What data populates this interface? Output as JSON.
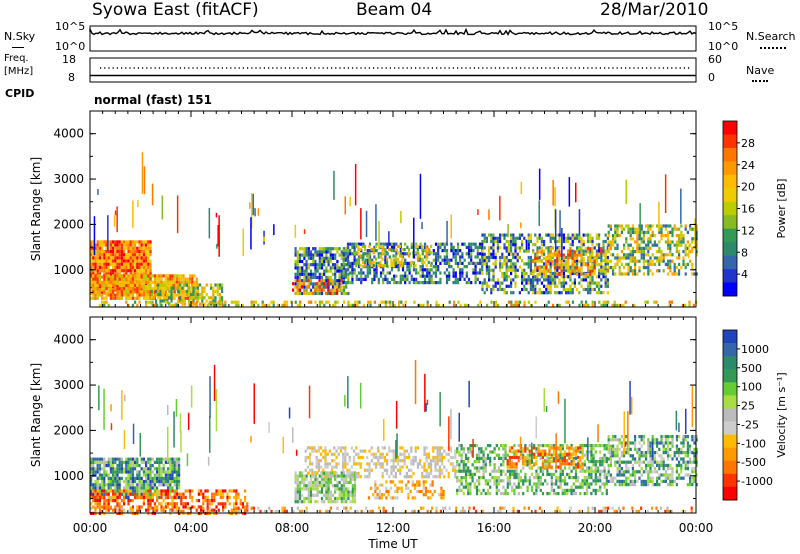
{
  "header": {
    "station": "Syowa East (fitACF)",
    "beam": "Beam 04",
    "date": "28/Mar/2010"
  },
  "strip_top": {
    "left_label": "N.Sky",
    "right_label": "N.Search",
    "ticks_left": [
      "10^5",
      "10^0"
    ],
    "ticks_right": [
      "10^5",
      "10^0"
    ]
  },
  "strip_freq": {
    "left_label_line1": "Freq.",
    "left_label_line2": "[MHz]",
    "right_label": "Nave",
    "ticks_left": [
      "18",
      "8"
    ],
    "ticks_right": [
      "60",
      "0"
    ]
  },
  "cpid": {
    "label": "CPID",
    "value": "normal (fast) 151"
  },
  "time_axis": {
    "label": "Time UT",
    "ticks": [
      "00:00",
      "04:00",
      "08:00",
      "12:00",
      "16:00",
      "20:00",
      "00:00"
    ]
  },
  "chart_data": [
    {
      "type": "heatmap",
      "title": "",
      "xlabel": "Time UT",
      "ylabel": "Slant Range [km]",
      "x_range_hours": [
        0,
        24
      ],
      "ylim": [
        180,
        4500
      ],
      "yticks": [
        "1000",
        "2000",
        "3000",
        "4000"
      ],
      "colorbar": {
        "label": "Power [dB]",
        "ticks": [
          "28",
          "24",
          "20",
          "16",
          "12",
          "8",
          "4"
        ],
        "colors": [
          "#ff0000",
          "#ff3300",
          "#ff7700",
          "#ff9900",
          "#ffbb00",
          "#eecc00",
          "#bbcc00",
          "#88bb22",
          "#339955",
          "#2a8a6a",
          "#3366aa",
          "#2233cc",
          "#0000ff"
        ]
      }
    },
    {
      "type": "heatmap",
      "title": "",
      "xlabel": "Time UT",
      "ylabel": "Slant Range [km]",
      "x_range_hours": [
        0,
        24
      ],
      "ylim": [
        180,
        4500
      ],
      "yticks": [
        "1000",
        "2000",
        "3000",
        "4000"
      ],
      "colorbar": {
        "label": "Velocity [m s⁻¹]",
        "ticks": [
          "1000",
          "500",
          "100",
          "25",
          "-25",
          "-100",
          "-500",
          "-1000"
        ],
        "colors": [
          "#2244bb",
          "#3366aa",
          "#2a8a6a",
          "#339955",
          "#66cc33",
          "#aadd44",
          "#bbbbbb",
          "#cccccc",
          "#ffbb00",
          "#ff9900",
          "#ff7700",
          "#ff3300",
          "#ff0000"
        ]
      }
    }
  ]
}
